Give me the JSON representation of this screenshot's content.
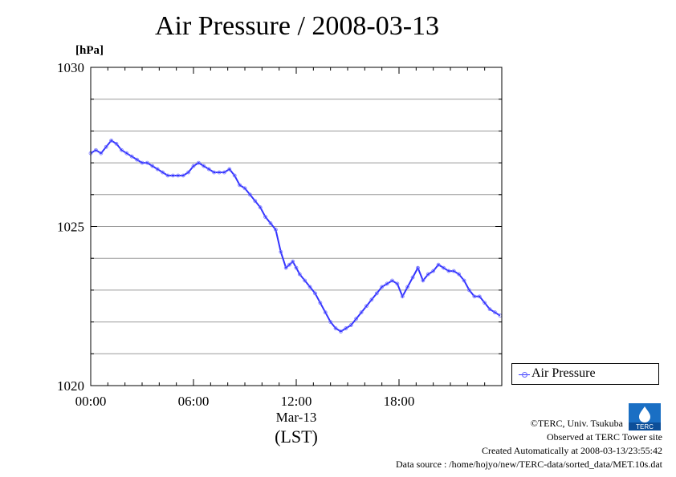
{
  "chart_data": {
    "type": "line",
    "title": "Air Pressure / 2008-03-13",
    "ylabel": "[hPa]",
    "xlabel": "(LST)",
    "x_date_label": "Mar-13",
    "ylim": [
      1020,
      1030
    ],
    "xlim": [
      0,
      24
    ],
    "yticks": [
      "1020",
      "1025",
      "1030"
    ],
    "xticks": [
      "00:00",
      "06:00",
      "12:00",
      "18:00"
    ],
    "grid": true,
    "legend_position": "right",
    "series": [
      {
        "name": "Air Pressure",
        "color": "#3333ff",
        "x": [
          0,
          0.3,
          0.6,
          0.9,
          1.2,
          1.5,
          1.8,
          2.1,
          2.4,
          2.7,
          3.0,
          3.3,
          3.6,
          3.9,
          4.2,
          4.5,
          4.8,
          5.1,
          5.4,
          5.7,
          6.0,
          6.3,
          6.6,
          6.9,
          7.2,
          7.5,
          7.8,
          8.1,
          8.4,
          8.7,
          9.0,
          9.3,
          9.6,
          9.9,
          10.2,
          10.5,
          10.8,
          11.1,
          11.4,
          11.6,
          11.8,
          12.0,
          12.2,
          12.5,
          12.8,
          13.1,
          13.4,
          13.7,
          14.0,
          14.3,
          14.6,
          14.9,
          15.2,
          15.5,
          15.8,
          16.1,
          16.4,
          16.7,
          17.0,
          17.3,
          17.6,
          17.9,
          18.2,
          18.5,
          18.8,
          19.1,
          19.4,
          19.7,
          20.0,
          20.3,
          20.6,
          20.9,
          21.2,
          21.5,
          21.8,
          22.1,
          22.4,
          22.7,
          23.0,
          23.3,
          23.6,
          23.9
        ],
        "values": [
          1027.3,
          1027.4,
          1027.3,
          1027.5,
          1027.7,
          1027.6,
          1027.4,
          1027.3,
          1027.2,
          1027.1,
          1027.0,
          1027.0,
          1026.9,
          1026.8,
          1026.7,
          1026.6,
          1026.6,
          1026.6,
          1026.6,
          1026.7,
          1026.9,
          1027.0,
          1026.9,
          1026.8,
          1026.7,
          1026.7,
          1026.7,
          1026.8,
          1026.6,
          1026.3,
          1026.2,
          1026.0,
          1025.8,
          1025.6,
          1025.3,
          1025.1,
          1024.9,
          1024.2,
          1023.7,
          1023.8,
          1023.9,
          1023.7,
          1023.5,
          1023.3,
          1023.1,
          1022.9,
          1022.6,
          1022.3,
          1022.0,
          1021.8,
          1021.7,
          1021.8,
          1021.9,
          1022.1,
          1022.3,
          1022.5,
          1022.7,
          1022.9,
          1023.1,
          1023.2,
          1023.3,
          1023.2,
          1022.8,
          1023.1,
          1023.4,
          1023.7,
          1023.3,
          1023.5,
          1023.6,
          1023.8,
          1023.7,
          1023.6,
          1023.6,
          1023.5,
          1023.3,
          1023.0,
          1022.8,
          1022.8,
          1022.6,
          1022.4,
          1022.3,
          1022.2
        ]
      }
    ]
  },
  "footer": {
    "copyright": "©TERC, Univ. Tsukuba",
    "observed": "Observed at TERC Tower site",
    "created": "Created Automatically at 2008-03-13/23:55:42",
    "source": "Data source : /home/hojyo/new/TERC-data/sorted_data/MET.10s.dat",
    "logo_text": "TERC"
  }
}
